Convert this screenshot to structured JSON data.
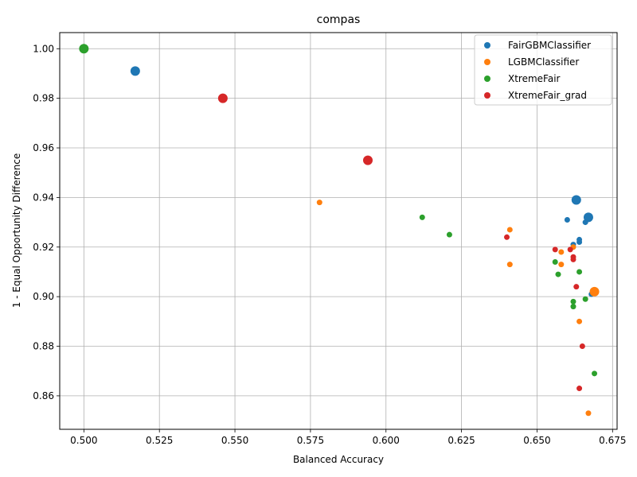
{
  "chart_data": {
    "type": "scatter",
    "title": "compas",
    "xlabel": "Balanced Accuracy",
    "ylabel": "1 - Equal Opportunity Difference",
    "xlim": [
      0.492,
      0.6765
    ],
    "ylim": [
      0.8465,
      1.0065
    ],
    "xticks": [
      0.5,
      0.525,
      0.55,
      0.575,
      0.6,
      0.625,
      0.65,
      0.675
    ],
    "xtick_labels": [
      "0.500",
      "0.525",
      "0.550",
      "0.575",
      "0.600",
      "0.625",
      "0.650",
      "0.675"
    ],
    "yticks": [
      0.86,
      0.88,
      0.9,
      0.92,
      0.94,
      0.96,
      0.98,
      1.0
    ],
    "ytick_labels": [
      "0.86",
      "0.88",
      "0.90",
      "0.92",
      "0.94",
      "0.96",
      "0.98",
      "1.00"
    ],
    "grid": true,
    "legend_position": "top-right",
    "series": [
      {
        "name": "FairGBMClassifier",
        "color": "#1f77b4",
        "points": [
          {
            "x": 0.517,
            "y": 0.991,
            "s": 6
          },
          {
            "x": 0.663,
            "y": 0.939,
            "s": 6
          },
          {
            "x": 0.667,
            "y": 0.932,
            "s": 6
          },
          {
            "x": 0.66,
            "y": 0.931,
            "s": 3.5
          },
          {
            "x": 0.666,
            "y": 0.93,
            "s": 3.5
          },
          {
            "x": 0.664,
            "y": 0.923,
            "s": 3.5
          },
          {
            "x": 0.664,
            "y": 0.922,
            "s": 3.5
          },
          {
            "x": 0.662,
            "y": 0.921,
            "s": 3.5
          },
          {
            "x": 0.668,
            "y": 0.901,
            "s": 3.5
          }
        ]
      },
      {
        "name": "LGBMClassifier",
        "color": "#ff7f0e",
        "points": [
          {
            "x": 0.578,
            "y": 0.938,
            "s": 3.5
          },
          {
            "x": 0.641,
            "y": 0.927,
            "s": 3.5
          },
          {
            "x": 0.662,
            "y": 0.92,
            "s": 3.5
          },
          {
            "x": 0.658,
            "y": 0.918,
            "s": 3.5
          },
          {
            "x": 0.641,
            "y": 0.913,
            "s": 3.5
          },
          {
            "x": 0.658,
            "y": 0.913,
            "s": 3.5
          },
          {
            "x": 0.669,
            "y": 0.902,
            "s": 6
          },
          {
            "x": 0.664,
            "y": 0.89,
            "s": 3.5
          },
          {
            "x": 0.667,
            "y": 0.853,
            "s": 3.5
          }
        ]
      },
      {
        "name": "XtremeFair",
        "color": "#2ca02c",
        "points": [
          {
            "x": 0.5,
            "y": 1.0,
            "s": 6
          },
          {
            "x": 0.612,
            "y": 0.932,
            "s": 3.5
          },
          {
            "x": 0.621,
            "y": 0.925,
            "s": 3.5
          },
          {
            "x": 0.656,
            "y": 0.914,
            "s": 3.5
          },
          {
            "x": 0.664,
            "y": 0.91,
            "s": 3.5
          },
          {
            "x": 0.657,
            "y": 0.909,
            "s": 3.5
          },
          {
            "x": 0.666,
            "y": 0.899,
            "s": 3.5
          },
          {
            "x": 0.662,
            "y": 0.898,
            "s": 3.5
          },
          {
            "x": 0.662,
            "y": 0.896,
            "s": 3.5
          },
          {
            "x": 0.669,
            "y": 0.869,
            "s": 3.5
          }
        ]
      },
      {
        "name": "XtremeFair_grad",
        "color": "#d62728",
        "points": [
          {
            "x": 0.546,
            "y": 0.98,
            "s": 6
          },
          {
            "x": 0.594,
            "y": 0.955,
            "s": 6
          },
          {
            "x": 0.64,
            "y": 0.924,
            "s": 3.5
          },
          {
            "x": 0.656,
            "y": 0.919,
            "s": 3.5
          },
          {
            "x": 0.661,
            "y": 0.919,
            "s": 3.5
          },
          {
            "x": 0.662,
            "y": 0.916,
            "s": 3.5
          },
          {
            "x": 0.662,
            "y": 0.915,
            "s": 3.5
          },
          {
            "x": 0.663,
            "y": 0.904,
            "s": 3.5
          },
          {
            "x": 0.665,
            "y": 0.88,
            "s": 3.5
          },
          {
            "x": 0.664,
            "y": 0.863,
            "s": 3.5
          }
        ]
      }
    ]
  }
}
